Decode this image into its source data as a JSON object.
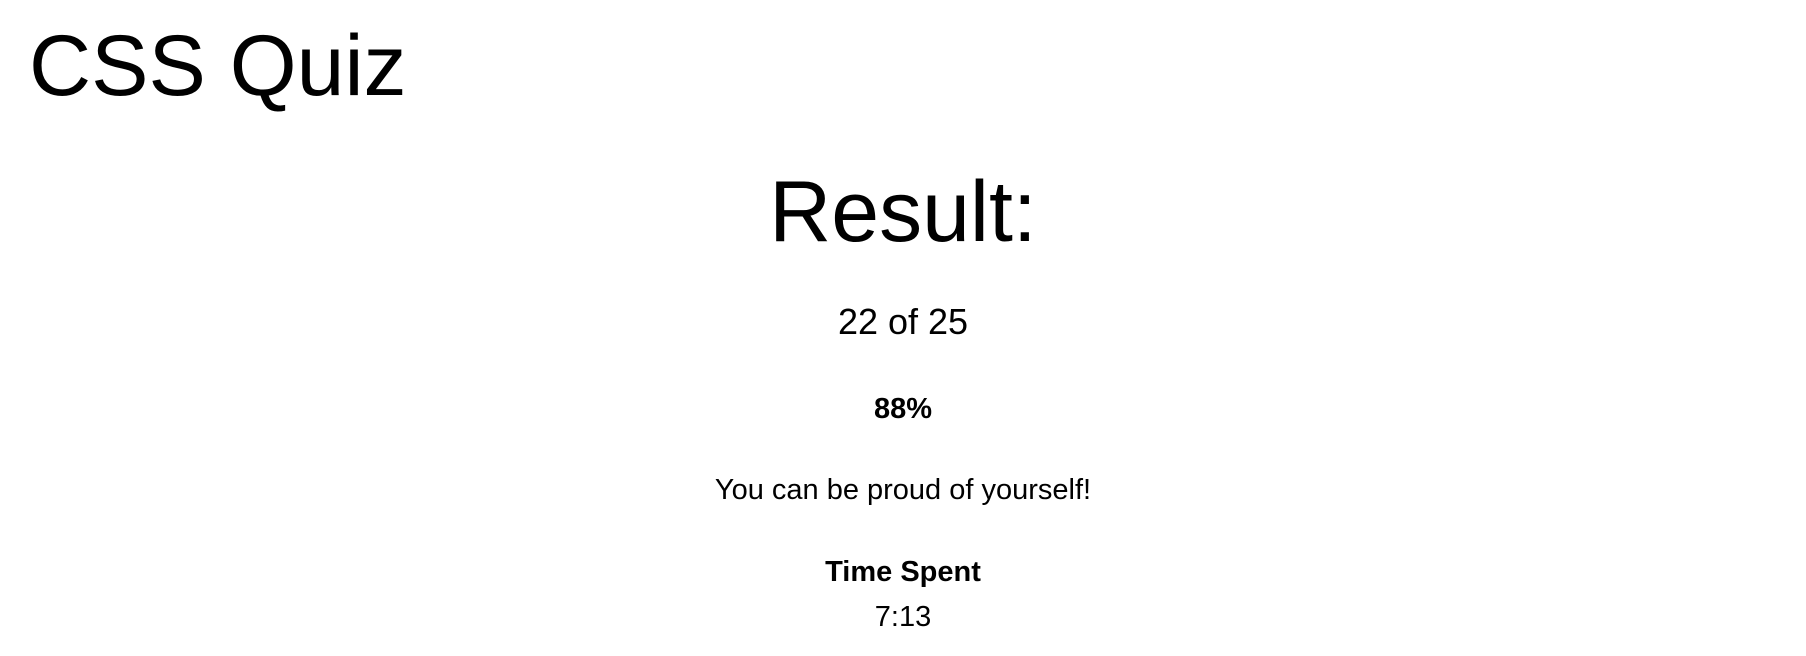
{
  "header": {
    "title": "CSS Quiz"
  },
  "result": {
    "heading": "Result:",
    "score_text": "22 of 25",
    "correct": 22,
    "total": 25,
    "percent_text": "88%",
    "message": "You can be proud of yourself!",
    "time_spent_label": "Time Spent",
    "time_spent_value": "7:13"
  }
}
